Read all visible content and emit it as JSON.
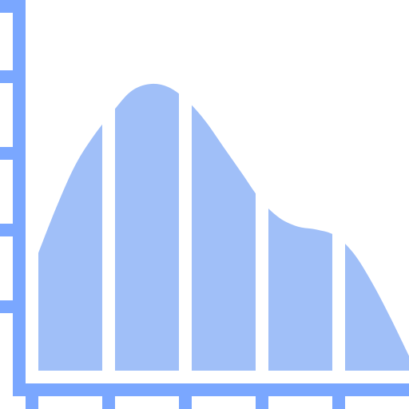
{
  "chart_data": {
    "type": "area",
    "title": "",
    "xlabel": "",
    "ylabel": "",
    "grid": false,
    "legend": "none",
    "segments": 5,
    "x": [
      0,
      0.25,
      0.5,
      0.75,
      1.0,
      1.25,
      1.5,
      1.75,
      2.0,
      2.25,
      2.5,
      2.75,
      3.0,
      3.25,
      3.5,
      3.75,
      4.0,
      4.25,
      4.5,
      4.75,
      5.0
    ],
    "y": [
      0.4,
      0.56,
      0.7,
      0.8,
      0.88,
      0.95,
      0.975,
      0.965,
      0.92,
      0.85,
      0.76,
      0.67,
      0.58,
      0.52,
      0.49,
      0.48,
      0.46,
      0.4,
      0.3,
      0.18,
      0.05
    ],
    "xlim": [
      0,
      5
    ],
    "ylim": [
      0,
      1
    ],
    "x_ticks": [
      0,
      1,
      2,
      3,
      4
    ],
    "y_ticks": [
      1,
      2,
      3,
      4
    ],
    "colors": {
      "axis": "#7aa7ff",
      "area": "#a0bff8",
      "separator": "#ffffff",
      "background": "#ffffff"
    }
  }
}
